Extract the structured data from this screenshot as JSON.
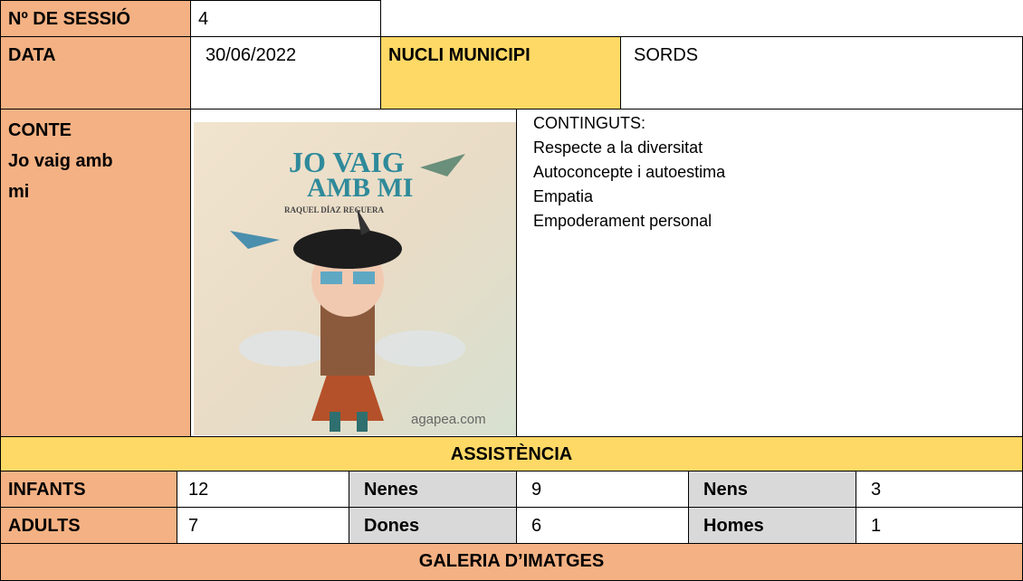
{
  "session": {
    "label": "Nº DE SESSIÓ",
    "value": 4
  },
  "date": {
    "label": "DATA",
    "value": "30/06/2022"
  },
  "nucli": {
    "label": "NUCLI MUNICIPI",
    "value": "SORDS"
  },
  "conte": {
    "label": "CONTE",
    "title": "Jo vaig amb mi",
    "cover": {
      "title_line1": "JO VAIG",
      "title_line2": "AMB MI",
      "author": "RAQUEL DÍAZ REGUERA",
      "watermark": "agapea.com"
    }
  },
  "continguts": {
    "label": "CONTINGUTS:",
    "items": [
      "Respecte a la diversitat",
      "Autoconcepte i autoestima",
      "Empatia",
      "Empoderament personal"
    ]
  },
  "assistencia": {
    "title": "ASSISTÈNCIA",
    "rows": [
      [
        {
          "label": "INFANTS",
          "value": 12
        },
        {
          "label": "Nenes",
          "value": 9
        },
        {
          "label": "Nens",
          "value": 3
        }
      ],
      [
        {
          "label": "ADULTS",
          "value": 7
        },
        {
          "label": "Dones",
          "value": 6
        },
        {
          "label": "Homes",
          "value": 1
        }
      ]
    ]
  },
  "galeria": "GALERIA D’IMATGES"
}
